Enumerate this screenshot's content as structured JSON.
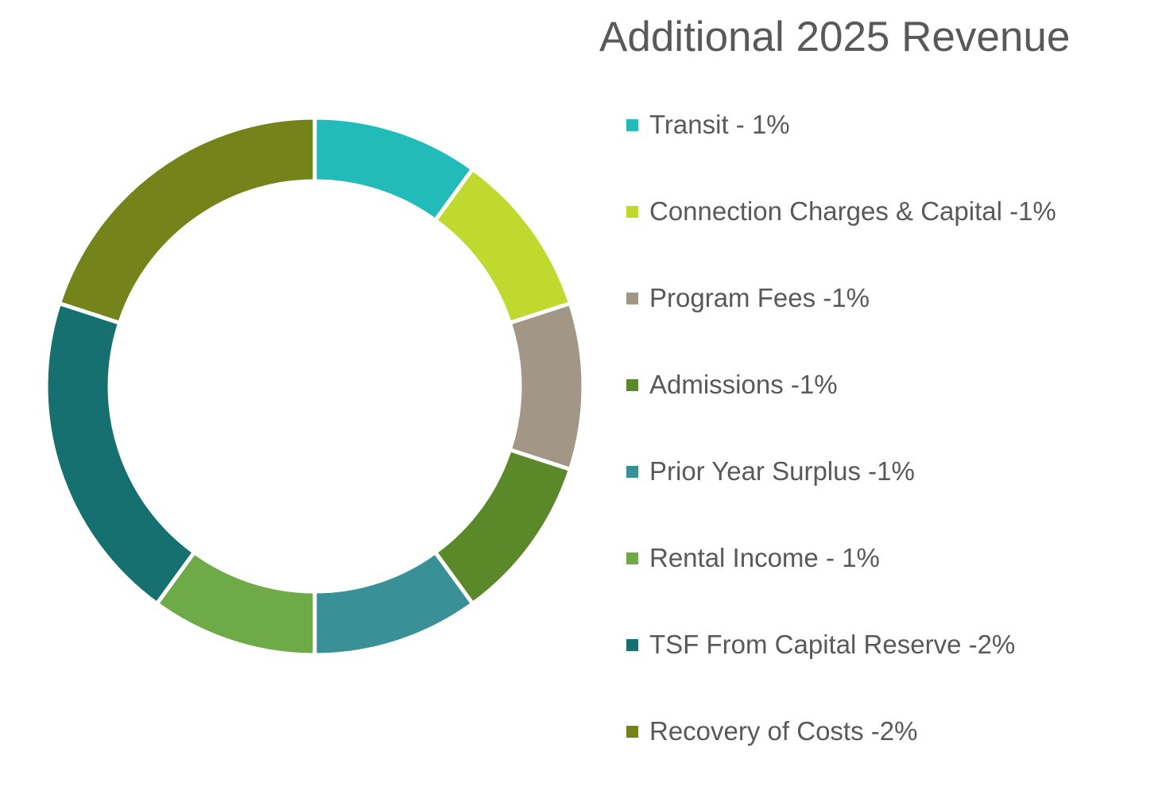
{
  "chart_data": {
    "type": "pie",
    "variant": "donut",
    "title": "Additional 2025 Revenue",
    "legend_position": "right",
    "slices": [
      {
        "label": "Transit - 1%",
        "value": 1,
        "color": "#22BBBA"
      },
      {
        "label": "Connection Charges & Capital -1%",
        "value": 1,
        "color": "#C0D92E"
      },
      {
        "label": "Program Fees -1%",
        "value": 1,
        "color": "#A29787"
      },
      {
        "label": "Admissions -1%",
        "value": 1,
        "color": "#5B8828"
      },
      {
        "label": "Prior Year Surplus -1%",
        "value": 1,
        "color": "#399197"
      },
      {
        "label": "Rental Income - 1%",
        "value": 1,
        "color": "#6EAA47"
      },
      {
        "label": "TSF From Capital Reserve -2%",
        "value": 2,
        "color": "#16706F"
      },
      {
        "label": "Recovery of Costs -2%",
        "value": 2,
        "color": "#74841B"
      }
    ]
  }
}
